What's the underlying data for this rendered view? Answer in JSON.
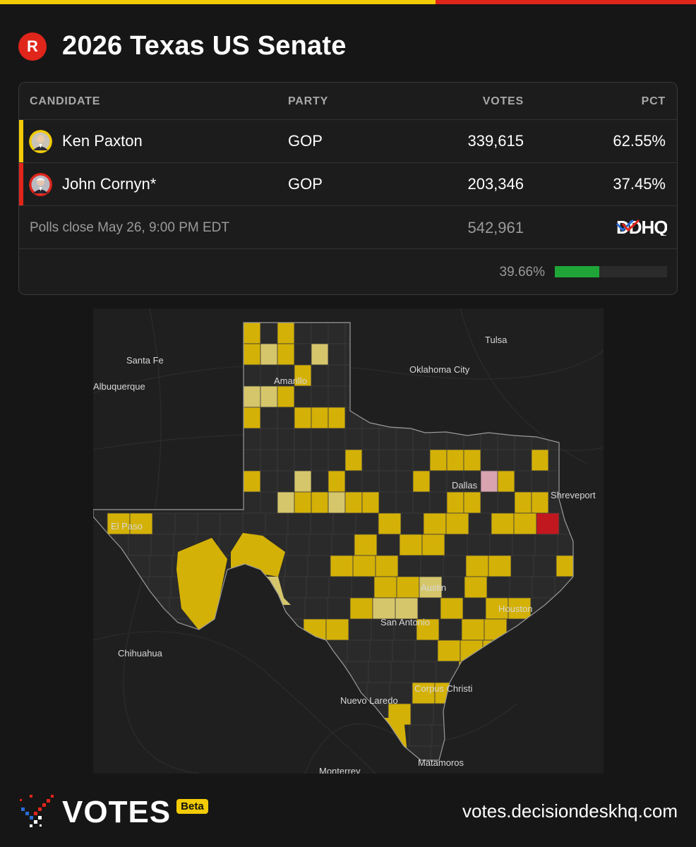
{
  "header": {
    "badge": "R",
    "title": "2026 Texas US Senate"
  },
  "table": {
    "columns": {
      "candidate": "CANDIDATE",
      "party": "PARTY",
      "votes": "VOTES",
      "pct": "PCT"
    },
    "candidates": [
      {
        "name": "Ken Paxton",
        "party": "GOP",
        "votes": "339,615",
        "pct": "62.55%",
        "color": "#f2cb05"
      },
      {
        "name": "John Cornyn*",
        "party": "GOP",
        "votes": "203,346",
        "pct": "37.45%",
        "color": "#e0251b"
      }
    ],
    "polls_close": "Polls close May 26, 9:00 PM EDT",
    "total_votes": "542,961",
    "reporting_pct": "39.66%",
    "reporting_fraction": 0.3966,
    "source_logo": "DDHQ"
  },
  "map": {
    "cities": [
      "Tulsa",
      "Santa Fe",
      "Oklahoma City",
      "Albuquerque",
      "Amarillo",
      "Dallas",
      "Shreveport",
      "El Paso",
      "Austin",
      "Houston",
      "San Antonio",
      "Chihuahua",
      "Corpus Christi",
      "Nuevo Laredo",
      "Matamoros",
      "Monterrey"
    ],
    "colors": {
      "paxton": "#d4b106",
      "paxton_light": "#d6c66b",
      "cornyn": "#c1181f",
      "cornyn_light": "#d9a3b0",
      "no_result": "#2a2a2a"
    }
  },
  "footer": {
    "brand": "VOTES",
    "badge": "Beta",
    "url": "votes.decisiondeskhq.com"
  }
}
